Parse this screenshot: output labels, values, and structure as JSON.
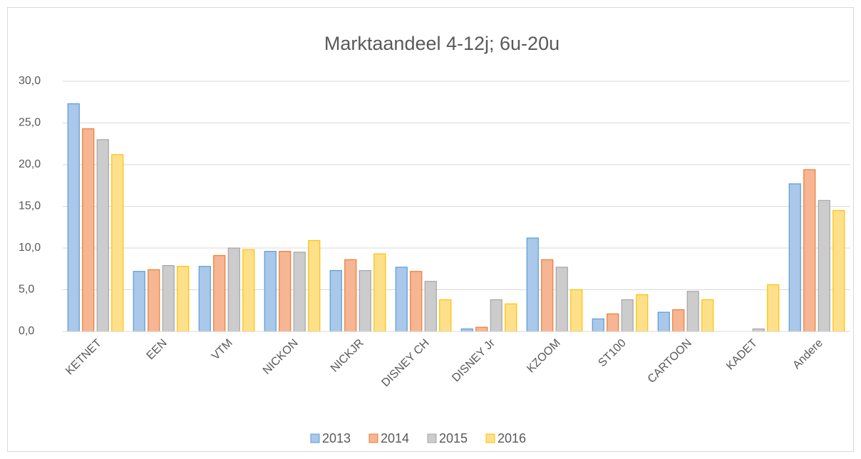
{
  "chart_data": {
    "type": "bar",
    "title": "Marktaandeel 4-12j; 6u-20u",
    "categories": [
      "KETNET",
      "EEN",
      "VTM",
      "NICKON",
      "NICKJR",
      "DISNEY CH",
      "DISNEY Jr",
      "KZOOM",
      "ST100",
      "CARTOON",
      "KADET",
      "Andere"
    ],
    "series": [
      {
        "name": "2013",
        "color": "#5b9bd5",
        "fill": "#a9c8ea",
        "values": [
          27.3,
          7.2,
          7.8,
          9.6,
          7.3,
          7.7,
          0.3,
          11.2,
          1.5,
          2.3,
          0,
          17.7
        ]
      },
      {
        "name": "2014",
        "color": "#ed7d31",
        "fill": "#f6b593",
        "values": [
          24.3,
          7.4,
          9.1,
          9.6,
          8.6,
          7.2,
          0.5,
          8.6,
          2.1,
          2.6,
          0,
          19.4
        ]
      },
      {
        "name": "2015",
        "color": "#a5a5a5",
        "fill": "#cccccc",
        "values": [
          23.0,
          7.9,
          10.0,
          9.5,
          7.3,
          6.0,
          3.8,
          7.7,
          3.8,
          4.8,
          0.3,
          15.7
        ]
      },
      {
        "name": "2016",
        "color": "#ffc000",
        "fill": "#ffe08a",
        "values": [
          21.2,
          7.8,
          9.8,
          10.9,
          9.3,
          3.8,
          3.3,
          5.0,
          4.4,
          3.8,
          5.6,
          14.5
        ]
      }
    ],
    "ylim": [
      0,
      30
    ],
    "yticks": [
      {
        "value": 0,
        "label": "0,0"
      },
      {
        "value": 5,
        "label": "5,0"
      },
      {
        "value": 10,
        "label": "10,0"
      },
      {
        "value": 15,
        "label": "15,0"
      },
      {
        "value": 20,
        "label": "20,0"
      },
      {
        "value": 25,
        "label": "25,0"
      },
      {
        "value": 30,
        "label": "30,0"
      }
    ],
    "grid": true,
    "legend": "bottom"
  }
}
